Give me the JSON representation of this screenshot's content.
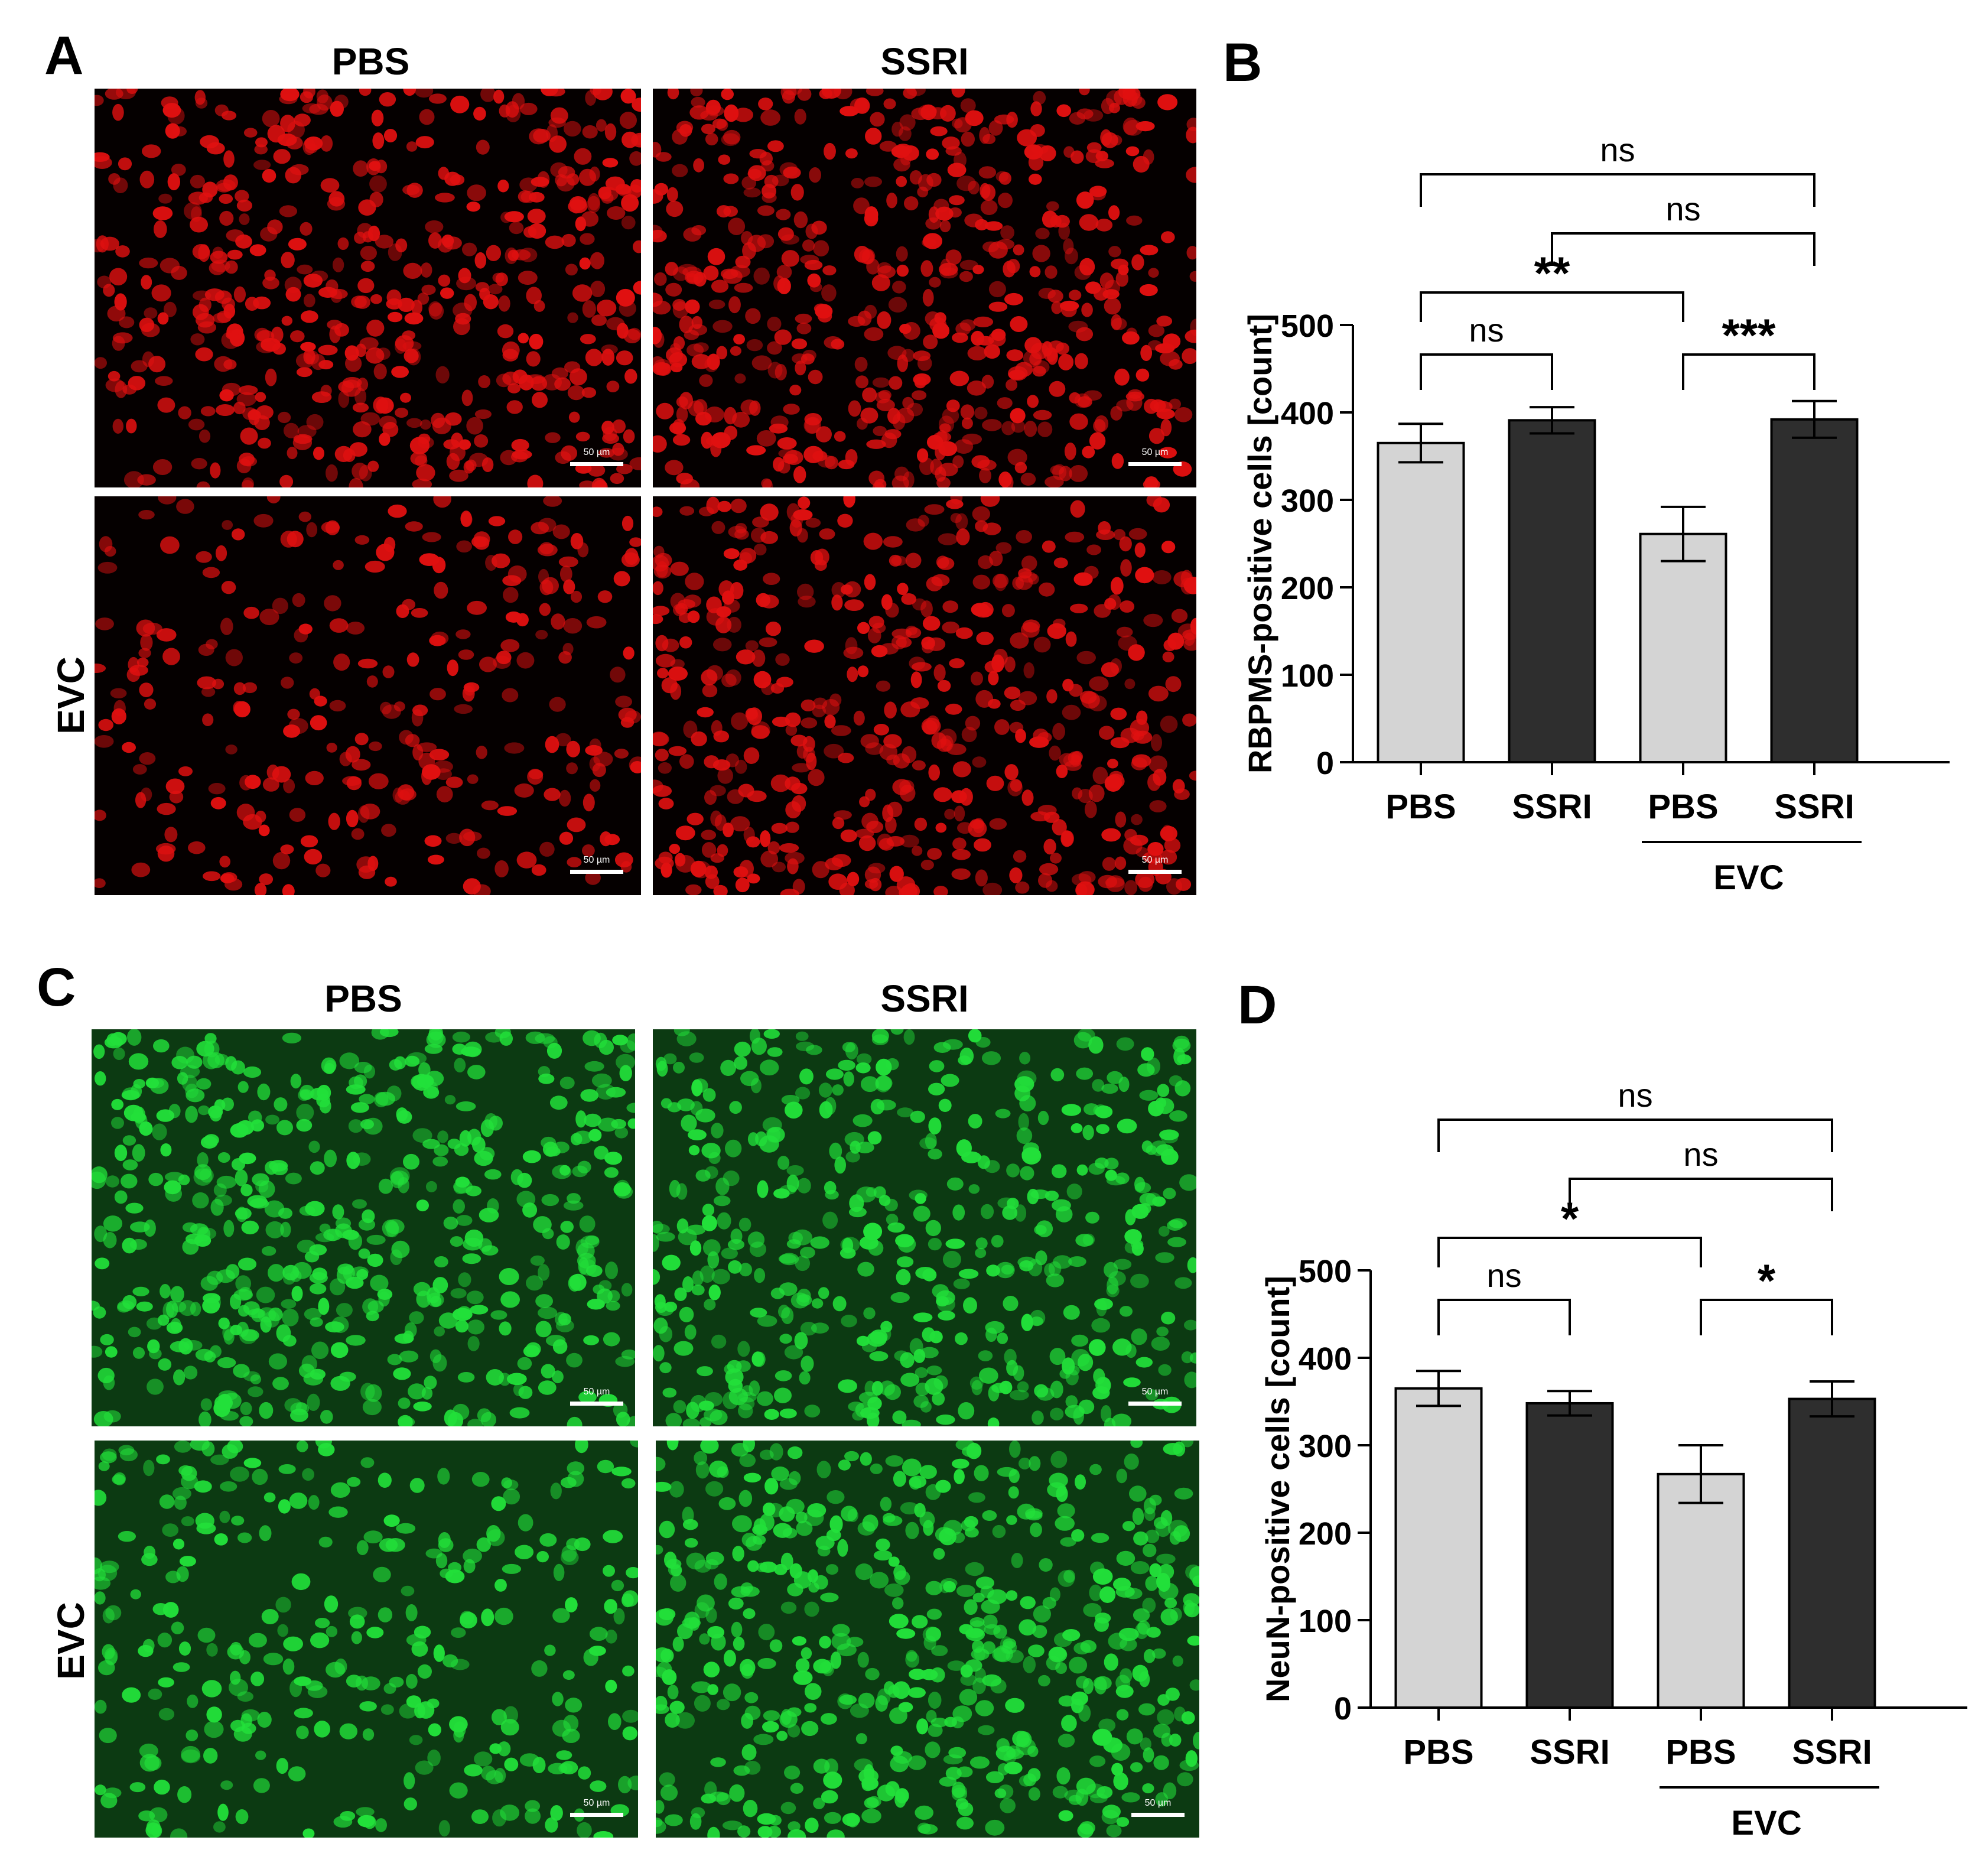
{
  "panels": {
    "A": {
      "letter": "A",
      "columns": [
        "PBS",
        "SSRI"
      ],
      "row_label": "EVC",
      "scale_bar": "50 µm",
      "stain_color": "#e01010"
    },
    "B": {
      "letter": "B"
    },
    "C": {
      "letter": "C",
      "columns": [
        "PBS",
        "SSRI"
      ],
      "row_label": "EVC",
      "scale_bar": "50 µm",
      "stain_color": "#22e03a"
    },
    "D": {
      "letter": "D"
    }
  },
  "chart_data": [
    {
      "panel": "B",
      "type": "bar",
      "categories": [
        "PBS",
        "SSRI",
        "PBS",
        "SSRI"
      ],
      "group_label": "EVC",
      "group_members": [
        2,
        3
      ],
      "values": [
        365,
        391,
        261,
        392
      ],
      "errors": [
        22,
        15,
        31,
        21
      ],
      "bar_colors": [
        "#d4d4d4",
        "#2e2e2e",
        "#d4d4d4",
        "#2e2e2e"
      ],
      "ylabel": "RBPMS-positive cells [count]",
      "ylim": [
        0,
        500
      ],
      "yticks": [
        0,
        100,
        200,
        300,
        400,
        500
      ],
      "significance": [
        {
          "from": 0,
          "to": 1,
          "label": "ns"
        },
        {
          "from": 2,
          "to": 3,
          "label": "***"
        },
        {
          "from": 0,
          "to": 2,
          "label": "**"
        },
        {
          "from": 1,
          "to": 3,
          "label": "ns"
        },
        {
          "from": 0,
          "to": 3,
          "label": "ns"
        }
      ]
    },
    {
      "panel": "D",
      "type": "bar",
      "categories": [
        "PBS",
        "SSRI",
        "PBS",
        "SSRI"
      ],
      "group_label": "EVC",
      "group_members": [
        2,
        3
      ],
      "values": [
        365,
        348,
        267,
        353
      ],
      "errors": [
        20,
        14,
        33,
        20
      ],
      "bar_colors": [
        "#d4d4d4",
        "#2e2e2e",
        "#d4d4d4",
        "#2e2e2e"
      ],
      "ylabel": "NeuN-positive cells [count]",
      "ylim": [
        0,
        500
      ],
      "yticks": [
        0,
        100,
        200,
        300,
        400,
        500
      ],
      "significance": [
        {
          "from": 0,
          "to": 1,
          "label": "ns"
        },
        {
          "from": 2,
          "to": 3,
          "label": "*"
        },
        {
          "from": 0,
          "to": 2,
          "label": "*"
        },
        {
          "from": 1,
          "to": 3,
          "label": "ns"
        },
        {
          "from": 0,
          "to": 3,
          "label": "ns"
        }
      ]
    }
  ]
}
